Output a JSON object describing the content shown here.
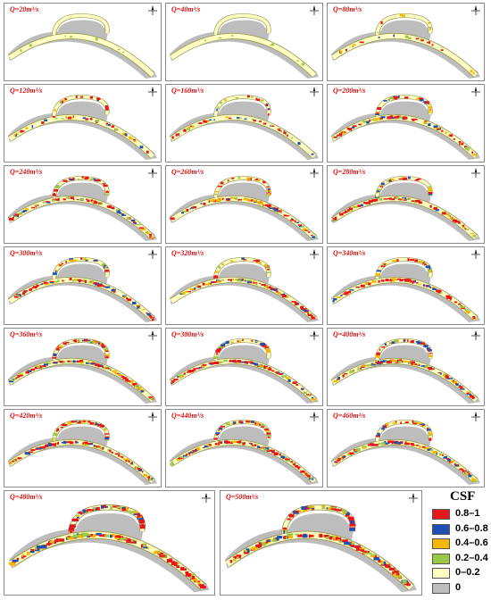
{
  "panels": [
    {
      "label": "Q=20m³/s",
      "level": 0
    },
    {
      "label": "Q=40m³/s",
      "level": 0
    },
    {
      "label": "Q=80m³/s",
      "level": 1
    },
    {
      "label": "Q=120m³/s",
      "level": 2
    },
    {
      "label": "Q=160m³/s",
      "level": 2
    },
    {
      "label": "Q=200m³/s",
      "level": 3
    },
    {
      "label": "Q=240m³/s",
      "level": 3
    },
    {
      "label": "Q=260m³/s",
      "level": 3
    },
    {
      "label": "Q=280m³/s",
      "level": 3
    },
    {
      "label": "Q=300m³/s",
      "level": 3
    },
    {
      "label": "Q=320m³/s",
      "level": 3
    },
    {
      "label": "Q=340m³/s",
      "level": 3
    },
    {
      "label": "Q=360m³/s",
      "level": 4
    },
    {
      "label": "Q=380m³/s",
      "level": 4
    },
    {
      "label": "Q=400m³/s",
      "level": 4
    },
    {
      "label": "Q=420m³/s",
      "level": 4
    },
    {
      "label": "Q=440m³/s",
      "level": 4
    },
    {
      "label": "Q=460m³/s",
      "level": 4
    },
    {
      "label": "Q=480m³/s",
      "level": 5
    },
    {
      "label": "Q=500m³/s",
      "level": 5
    }
  ],
  "legend": {
    "title": "CSF",
    "items": [
      {
        "label": "0.8–1",
        "color": "#e8161b"
      },
      {
        "label": "0.6–0.8",
        "color": "#1f4fb4"
      },
      {
        "label": "0.4–0.6",
        "color": "#f5b800"
      },
      {
        "label": "0.2–0.4",
        "color": "#9cc848"
      },
      {
        "label": "0–0.2",
        "color": "#ffffc4"
      },
      {
        "label": "0",
        "color": "#bdbdbd"
      }
    ]
  },
  "compass_icon": "north-arrow-icon"
}
